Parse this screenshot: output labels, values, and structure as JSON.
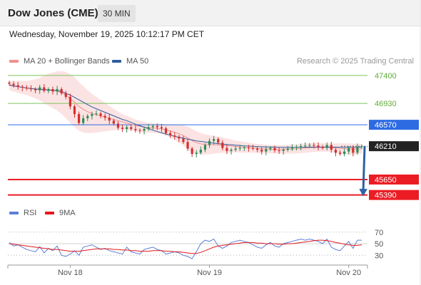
{
  "header": {
    "instrument": "Dow Jones (CME)",
    "interval": "30 MIN",
    "datetime": "Wednesday, November 19, 2025 10:12:17 PM CET"
  },
  "legend": {
    "items": [
      {
        "label": "MA 20 + Bollinger Bands",
        "color": "#f08f8f"
      },
      {
        "label": "MA 50",
        "color": "#2f5d9e"
      }
    ],
    "rsi_items": [
      {
        "label": "RSI",
        "color": "#5b7fd6"
      },
      {
        "label": "9MA",
        "color": "#e3171b"
      }
    ]
  },
  "research_credit": "Research © 2025 Trading Central",
  "colors": {
    "resistance": "#7cc35a",
    "pivot": "#2d6be3",
    "support": "#ec1c24",
    "current": "#222222",
    "bull_candle": "#2e8b57",
    "bear_candle": "#d32f2f",
    "bollinger_fill": "#fbdede",
    "arrow": "#2c62a6"
  },
  "chart_data": [
    {
      "type": "candlestick",
      "price_labels": [
        "47400",
        "46930",
        "46570",
        "46210",
        "45650",
        "45390"
      ],
      "price_levels": [
        {
          "value": 47400,
          "label": "47400",
          "kind": "resistance"
        },
        {
          "value": 46930,
          "label": "46930",
          "kind": "resistance"
        },
        {
          "value": 46570,
          "label": "46570",
          "kind": "pivot"
        },
        {
          "value": 46210,
          "label": "46210",
          "kind": "current"
        },
        {
          "value": 45650,
          "label": "45650",
          "kind": "support"
        },
        {
          "value": 45390,
          "label": "45390",
          "kind": "support"
        }
      ],
      "x_tick_labels": [
        "Nov 18",
        "Nov 19",
        "Nov 20"
      ],
      "x_tick_positions": [
        14,
        46,
        78
      ],
      "total_bars": 82,
      "ylim": [
        45290,
        47470
      ],
      "close_series": [
        47260,
        47235,
        47210,
        47195,
        47180,
        47170,
        47150,
        47200,
        47140,
        47170,
        47130,
        47170,
        47100,
        47040,
        46880,
        46750,
        46600,
        46680,
        46720,
        46750,
        46760,
        46720,
        46690,
        46640,
        46590,
        46520,
        46500,
        46530,
        46500,
        46480,
        46470,
        46500,
        46530,
        46550,
        46530,
        46510,
        46430,
        46390,
        46370,
        46340,
        46280,
        46170,
        46080,
        46100,
        46150,
        46230,
        46300,
        46330,
        46270,
        46180,
        46130,
        46150,
        46170,
        46180,
        46190,
        46180,
        46170,
        46150,
        46120,
        46160,
        46180,
        46140,
        46130,
        46150,
        46170,
        46190,
        46200,
        46210,
        46220,
        46230,
        46220,
        46200,
        46180,
        46230,
        46150,
        46100,
        46080,
        46120,
        46180,
        46100,
        46200,
        46210
      ],
      "ma50_series": [
        47240,
        47225,
        47212,
        47200,
        47190,
        47180,
        47170,
        47165,
        47160,
        47155,
        47150,
        47145,
        47130,
        47100,
        47070,
        47030,
        46990,
        46950,
        46910,
        46870,
        46840,
        46810,
        46780,
        46750,
        46720,
        46690,
        46660,
        46640,
        46610,
        46580,
        46555,
        46530,
        46505,
        46480,
        46455,
        46435,
        46415,
        46395,
        46375,
        46360,
        46345,
        46330,
        46315,
        46300,
        46290,
        46280,
        46270,
        46262,
        46254,
        46246,
        46240,
        46234,
        46228,
        46222,
        46216,
        46212,
        46208,
        46204,
        46200,
        46198,
        46196,
        46194,
        46192,
        46190,
        46190,
        46190,
        46191,
        46192,
        46193,
        46194,
        46195,
        46196,
        46196,
        46196,
        46195,
        46194,
        46193,
        46192,
        46192,
        46192,
        46193,
        46194
      ],
      "ma20_series": [
        47230,
        47220,
        47210,
        47200,
        47190,
        47180,
        47175,
        47170,
        47165,
        47160,
        47150,
        47140,
        47110,
        47070,
        47010,
        46950,
        46880,
        46830,
        46790,
        46760,
        46740,
        46720,
        46700,
        46680,
        46660,
        46640,
        46620,
        46600,
        46580,
        46560,
        46545,
        46530,
        46520,
        46515,
        46510,
        46500,
        46485,
        46465,
        46445,
        46420,
        46390,
        46350,
        46305,
        46270,
        46250,
        46240,
        46235,
        46235,
        46232,
        46228,
        46222,
        46214,
        46206,
        46198,
        46190,
        46184,
        46178,
        46172,
        46167,
        46163,
        46160,
        46158,
        46156,
        46156,
        46158,
        46162,
        46166,
        46172,
        46178,
        46184,
        46188,
        46190,
        46190,
        46190,
        46186,
        46180,
        46174,
        46168,
        46164,
        46160,
        46162,
        46166
      ],
      "bollinger_width": [
        80,
        90,
        100,
        110,
        120,
        140,
        160,
        190,
        230,
        270,
        300,
        330,
        360,
        390,
        410,
        420,
        410,
        390,
        360,
        330,
        300,
        270,
        240,
        210,
        180,
        150,
        130,
        120,
        110,
        100,
        95,
        90,
        85,
        82,
        80,
        85,
        95,
        110,
        130,
        150,
        170,
        190,
        200,
        190,
        180,
        170,
        160,
        150,
        140,
        130,
        120,
        110,
        100,
        95,
        90,
        85,
        80,
        78,
        75,
        72,
        70,
        70,
        70,
        72,
        75,
        78,
        80,
        80,
        80,
        78,
        76,
        74,
        72,
        72,
        74,
        78,
        84,
        90,
        94,
        94,
        90,
        86
      ],
      "projection": {
        "from": 46210,
        "to": 45390
      }
    },
    {
      "type": "line",
      "title": "RSI",
      "y_tick_labels": [
        "70",
        "50",
        "30"
      ],
      "ylim": [
        18,
        82
      ],
      "series": [
        {
          "name": "RSI",
          "values": [
            52,
            46,
            48,
            44,
            40,
            38,
            36,
            45,
            34,
            42,
            38,
            46,
            30,
            28,
            32,
            38,
            30,
            44,
            46,
            48,
            44,
            40,
            42,
            38,
            36,
            34,
            32,
            44,
            36,
            34,
            32,
            40,
            42,
            44,
            40,
            38,
            32,
            34,
            36,
            34,
            30,
            28,
            24,
            36,
            50,
            56,
            54,
            58,
            46,
            42,
            46,
            52,
            54,
            56,
            54,
            52,
            48,
            44,
            42,
            48,
            52,
            46,
            44,
            50,
            52,
            54,
            56,
            58,
            56,
            58,
            56,
            54,
            50,
            58,
            44,
            40,
            38,
            46,
            54,
            42,
            56,
            56
          ]
        },
        {
          "name": "9MA",
          "values": [
            50,
            49,
            48,
            47,
            46,
            45,
            44,
            43,
            42,
            41,
            40,
            40,
            39,
            38,
            37,
            37,
            37,
            38,
            39,
            40,
            41,
            41,
            41,
            41,
            40,
            40,
            39,
            39,
            38,
            38,
            37,
            37,
            37,
            38,
            38,
            38,
            37,
            37,
            36,
            36,
            35,
            34,
            33,
            33,
            35,
            38,
            41,
            44,
            46,
            47,
            48,
            49,
            50,
            51,
            52,
            52,
            52,
            51,
            51,
            50,
            50,
            50,
            49,
            49,
            50,
            50,
            51,
            52,
            53,
            54,
            55,
            56,
            56,
            55,
            54,
            52,
            51,
            49,
            48,
            47,
            47,
            48
          ]
        }
      ]
    }
  ]
}
